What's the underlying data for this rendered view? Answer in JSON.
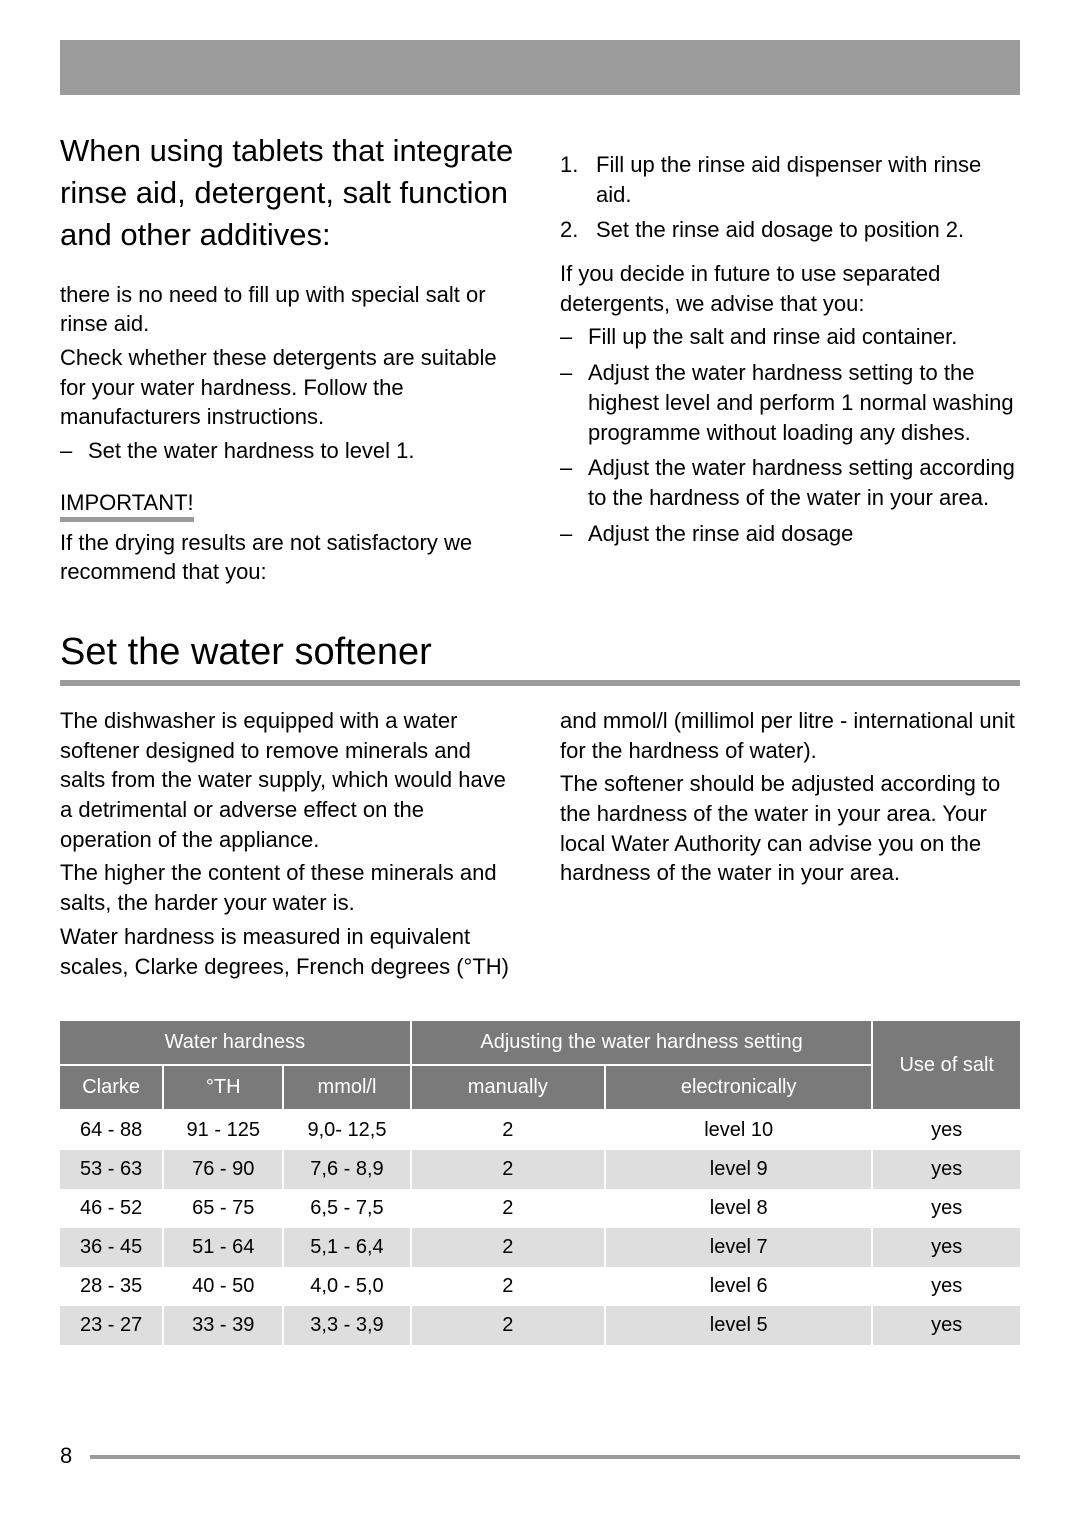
{
  "page_number": "8",
  "section1": {
    "heading": "When using tablets that integrate rinse aid, detergent, salt function and other additives:",
    "left_para1": "there is no need to fill up with special salt or rinse aid.",
    "left_para2": "Check whether these detergents are suitable for your water hardness. Follow the manufacturers instructions.",
    "left_list1_item1": "Set the water hardness to level 1.",
    "important_label": "IMPORTANT!",
    "left_para3": "If the drying results are not satisfactory we recommend that you:",
    "ol_1_num": "1.",
    "ol_1_text": "Fill up the rinse aid dispenser with rinse aid.",
    "ol_2_num": "2.",
    "ol_2_text": "Set the rinse aid dosage to position 2.",
    "right_para1": "If you decide in future to use separated detergents, we advise that you:",
    "rlist_1": "Fill up the salt and rinse aid container.",
    "rlist_2": "Adjust the water hardness setting to the highest level and perform 1 normal washing programme without loading any dishes.",
    "rlist_3": "Adjust the water hardness setting according to the hardness of the water in your area.",
    "rlist_4": "Adjust the rinse aid dosage"
  },
  "section2": {
    "heading": "Set the water softener",
    "left_para1": "The dishwasher is equipped with a water softener designed to remove minerals and salts from the water supply, which would have a detrimental or adverse effect on the operation of the appliance.",
    "left_para2": "The higher the content of these minerals and salts, the harder your water is.",
    "left_para3": "Water hardness is measured in equivalent scales, Clarke degrees, French degrees (°TH)",
    "right_para1": "and mmol/l (millimol per litre - international unit for the hardness of water).",
    "right_para2": "The softener should be adjusted according to the hardness of the water in your area. Your local Water Authority can advise you on the hardness of the water in your area."
  },
  "table": {
    "header_group_hardness": "Water hardness",
    "header_group_adjust": "Adjusting the water hardness setting",
    "header_use_salt": "Use of salt",
    "col_clarke": "Clarke",
    "col_th": "°TH",
    "col_mmol": "mmol/l",
    "col_manual": "manually",
    "col_electronic": "electronically",
    "rows": [
      {
        "clarke": "64 - 88",
        "th": "91 - 125",
        "mmol": "9,0- 12,5",
        "manual": "2",
        "elec": "level 10",
        "salt": "yes"
      },
      {
        "clarke": "53 - 63",
        "th": "76 - 90",
        "mmol": "7,6 - 8,9",
        "manual": "2",
        "elec": "level 9",
        "salt": "yes"
      },
      {
        "clarke": "46 - 52",
        "th": "65 - 75",
        "mmol": "6,5 - 7,5",
        "manual": "2",
        "elec": "level 8",
        "salt": "yes"
      },
      {
        "clarke": "36 - 45",
        "th": "51 - 64",
        "mmol": "5,1 - 6,4",
        "manual": "2",
        "elec": "level 7",
        "salt": "yes"
      },
      {
        "clarke": "28 - 35",
        "th": "40 - 50",
        "mmol": "4,0 - 5,0",
        "manual": "2",
        "elec": "level 6",
        "salt": "yes"
      },
      {
        "clarke": "23 - 27",
        "th": "33 - 39",
        "mmol": "3,3 - 3,9",
        "manual": "2",
        "elec": "level 5",
        "salt": "yes"
      }
    ]
  }
}
